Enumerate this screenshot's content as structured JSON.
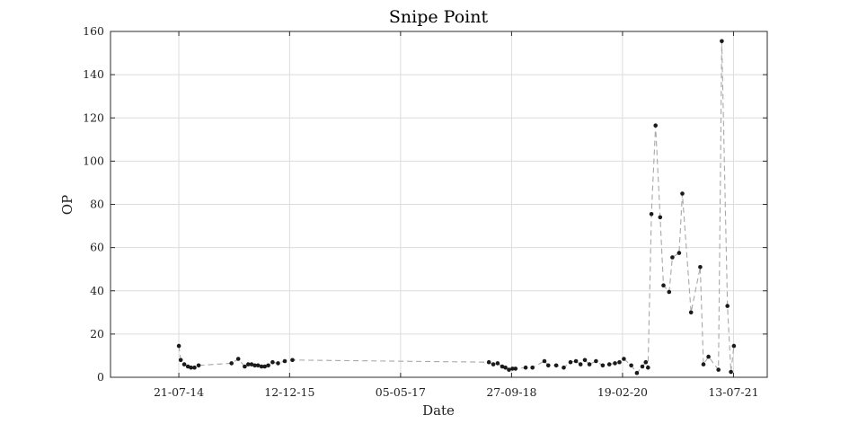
{
  "chart_data": {
    "type": "line",
    "title": "Snipe Point",
    "xlabel": "Date",
    "ylabel": "OP",
    "x_axis_type": "date",
    "xlim": [
      "2013-09-10",
      "2021-12-15"
    ],
    "ylim": [
      0,
      160
    ],
    "x_ticks": [
      "2014-07-21",
      "2015-12-12",
      "2017-05-05",
      "2018-09-27",
      "2020-02-19",
      "2021-07-13"
    ],
    "x_tick_labels": [
      "21-07-14",
      "12-12-15",
      "05-05-17",
      "27-09-18",
      "19-02-20",
      "13-07-21"
    ],
    "y_ticks": [
      0,
      20,
      40,
      60,
      80,
      100,
      120,
      140,
      160
    ],
    "y_tick_labels": [
      "0",
      "20",
      "40",
      "60",
      "80",
      "100",
      "120",
      "140",
      "160"
    ],
    "grid": true,
    "legend": "none",
    "colors": {
      "line": "#a8a8a8",
      "marker": "#1a1a1a"
    },
    "series": [
      {
        "x": [
          "2014-07-21",
          "2014-07-30",
          "2014-08-15",
          "2014-09-01",
          "2014-09-15",
          "2014-10-01",
          "2014-10-20",
          "2015-03-20",
          "2015-04-20",
          "2015-05-20",
          "2015-06-05",
          "2015-06-20",
          "2015-07-05",
          "2015-07-20",
          "2015-08-05",
          "2015-08-20",
          "2015-09-05",
          "2015-09-25",
          "2015-10-20",
          "2015-11-20",
          "2015-12-25",
          "2018-06-15",
          "2018-07-05",
          "2018-07-25",
          "2018-08-15",
          "2018-08-30",
          "2018-09-15",
          "2018-10-01",
          "2018-10-15",
          "2018-12-01",
          "2019-01-01",
          "2019-02-25",
          "2019-03-15",
          "2019-04-20",
          "2019-05-25",
          "2019-06-25",
          "2019-07-20",
          "2019-08-10",
          "2019-08-30",
          "2019-09-20",
          "2019-10-20",
          "2019-11-20",
          "2019-12-20",
          "2020-01-15",
          "2020-02-05",
          "2020-02-25",
          "2020-03-30",
          "2020-04-25",
          "2020-05-20",
          "2020-06-05",
          "2020-06-15",
          "2020-07-01",
          "2020-07-20",
          "2020-08-10",
          "2020-08-25",
          "2020-09-20",
          "2020-10-05",
          "2020-11-05",
          "2020-11-20",
          "2020-12-30",
          "2021-02-10",
          "2021-02-25",
          "2021-03-20",
          "2021-05-05",
          "2021-05-20",
          "2021-06-15",
          "2021-07-01",
          "2021-07-15"
        ],
        "y": [
          14.5,
          8,
          6,
          5,
          4.5,
          4.5,
          5.5,
          6.5,
          8.5,
          5,
          6,
          6,
          5.5,
          5.5,
          5,
          5,
          5.5,
          7,
          6.5,
          7.5,
          8,
          7,
          6,
          6.5,
          5,
          4.5,
          3.5,
          4,
          4,
          4.5,
          4.5,
          7.5,
          5.5,
          5.5,
          4.5,
          7,
          7.5,
          6,
          8,
          6,
          7.5,
          5.5,
          6,
          6.5,
          7,
          8.5,
          5.5,
          2,
          5,
          7,
          4.5,
          75.5,
          116.5,
          74,
          42.5,
          39.5,
          55.5,
          57.5,
          85,
          30,
          51,
          6,
          9.5,
          3.5,
          155.5,
          33,
          2.5,
          14.5
        ]
      }
    ]
  }
}
